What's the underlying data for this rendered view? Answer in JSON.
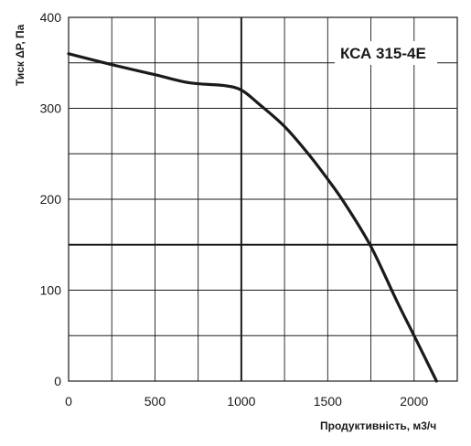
{
  "chart_data": {
    "type": "line",
    "title": "КСА 315-4Е",
    "xlabel": "Продуктивність, м3/ч",
    "ylabel": "Тиск ΔP, Па",
    "xlim": [
      0,
      2250
    ],
    "ylim": [
      0,
      400
    ],
    "x_ticks": [
      0,
      500,
      1000,
      1500,
      2000
    ],
    "y_ticks": [
      0,
      100,
      200,
      300,
      400
    ],
    "x_gridlines": [
      0,
      250,
      500,
      750,
      1000,
      1250,
      1500,
      1750,
      2000,
      2250
    ],
    "y_gridlines": [
      0,
      50,
      100,
      150,
      200,
      250,
      300,
      350,
      400
    ],
    "grid": true,
    "reference_lines": {
      "x": 1000,
      "y": 150
    },
    "series": [
      {
        "x": [
          0,
          250,
          500,
          700,
          900,
          1000,
          1100,
          1250,
          1400,
          1500,
          1600,
          1750,
          1900,
          2000,
          2130
        ],
        "values": [
          360,
          348,
          337,
          328,
          325,
          320,
          305,
          280,
          247,
          222,
          195,
          148,
          88,
          50,
          0
        ]
      }
    ],
    "colors": {
      "curve": "#1a1a1a",
      "grid": "#1a1a1a",
      "text": "#1a1a1a"
    }
  }
}
